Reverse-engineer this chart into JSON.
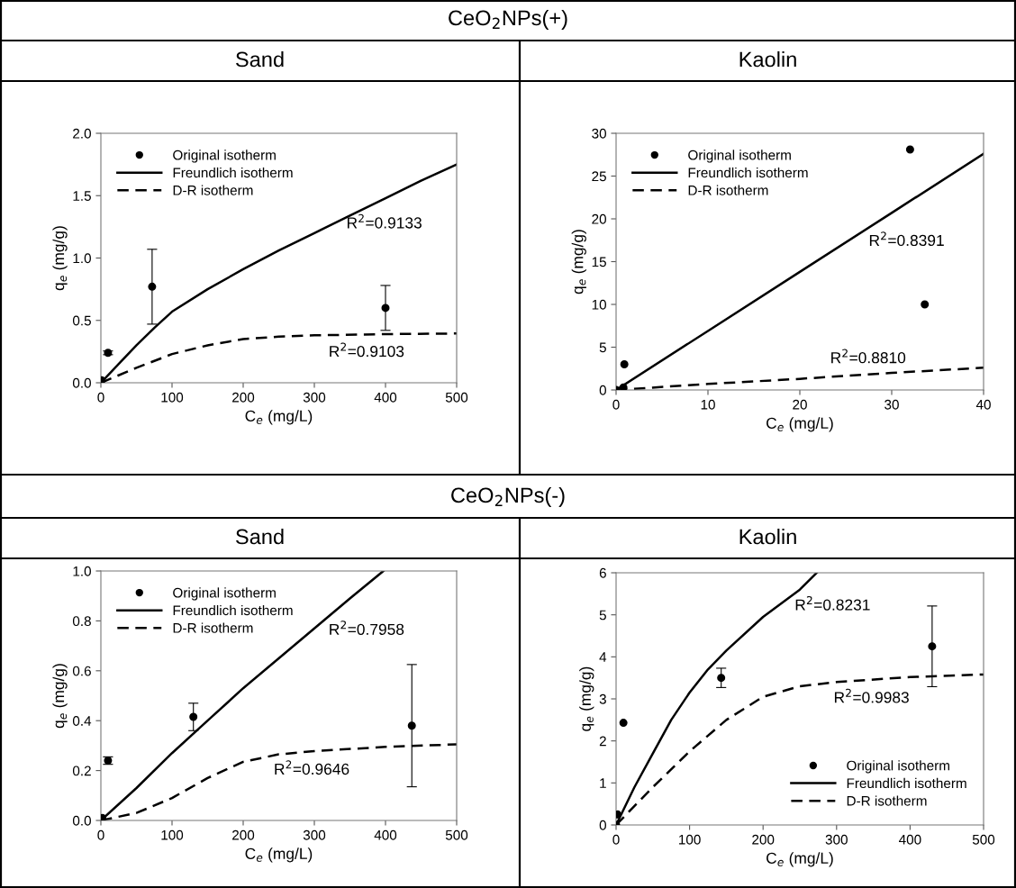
{
  "chart_data": [
    {
      "type": "scatter",
      "subtitle": "CeO$_{2}$NPs(+)",
      "title": "Sand",
      "xlabel": "C$_{e}$ (mg/L)",
      "ylabel": "q$_{e}$ (mg/g)",
      "xlim": [
        0,
        500
      ],
      "xticks": [
        0,
        100,
        200,
        300,
        400,
        500
      ],
      "ylim": [
        0,
        2.0
      ],
      "yticks": [
        {
          "value": 0,
          "label": "0.0"
        },
        0.5,
        {
          "value": 1,
          "label": "1.0"
        },
        1.5,
        {
          "value": 2,
          "label": "2.0"
        }
      ],
      "grid": false,
      "legend": "top left",
      "series": [
        {
          "name": "Original isotherm",
          "marker": "circle",
          "color": "#000000",
          "x": [
            1,
            10,
            72,
            400
          ],
          "values": [
            0.02,
            0.24,
            0.77,
            0.6
          ],
          "errors": [
            null,
            0.015,
            0.3,
            0.18
          ]
        },
        {
          "name": "Freundlich isotherm",
          "type": "line",
          "line_style": "solid",
          "color": "#000000",
          "x": [
            0,
            25,
            50,
            75,
            100,
            150,
            200,
            250,
            300,
            350,
            400,
            450,
            500
          ],
          "values": [
            0,
            0.15,
            0.3,
            0.44,
            0.57,
            0.75,
            0.91,
            1.06,
            1.2,
            1.34,
            1.48,
            1.62,
            1.75
          ]
        },
        {
          "name": "D-R isotherm",
          "type": "line",
          "line_style": "dashed",
          "color": "#000000",
          "x": [
            0,
            50,
            100,
            150,
            200,
            250,
            300,
            400,
            500
          ],
          "values": [
            0,
            0.12,
            0.23,
            0.3,
            0.35,
            0.37,
            0.38,
            0.39,
            0.395
          ]
        }
      ],
      "annotations": [
        "R$^{2}$=0.9133",
        "R$^{2}$=0.9103"
      ]
    },
    {
      "type": "scatter",
      "title": "Kaolin",
      "xlabel": "C$_{e}$ (mg/L)",
      "ylabel": "q$_{e}$ (mg/g)",
      "xlim": [
        0,
        40
      ],
      "xticks": [
        0,
        10,
        20,
        30,
        40
      ],
      "ylim": [
        0,
        30
      ],
      "yticks": [
        0,
        5,
        10,
        15,
        20,
        25,
        30
      ],
      "grid": false,
      "legend": "top left",
      "series": [
        {
          "name": "Original isotherm",
          "marker": "circle",
          "color": "#000000",
          "x": [
            0,
            0.8,
            0.9,
            32,
            33.6
          ],
          "values": [
            0,
            0.3,
            3.0,
            28.1,
            10
          ]
        },
        {
          "name": "Freundlich isotherm",
          "type": "line",
          "line_style": "solid",
          "color": "#000000",
          "x": [
            0,
            10,
            20,
            30,
            40
          ],
          "values": [
            0,
            6.9,
            13.8,
            20.7,
            27.6
          ]
        },
        {
          "name": "D-R isotherm",
          "type": "line",
          "line_style": "dashed",
          "color": "#000000",
          "x": [
            0,
            10,
            20,
            30,
            40
          ],
          "values": [
            0,
            0.7,
            1.3,
            2.0,
            2.6
          ]
        }
      ],
      "annotations": [
        "R$^{2}$=0.8391",
        "R$^{2}$=0.8810"
      ]
    },
    {
      "type": "scatter",
      "subtitle": "CeO$_{2}$NPs(-)",
      "title": "Sand",
      "xlabel": "C$_{e}$ (mg/L)",
      "ylabel": "q$_{e}$ (mg/g)",
      "xlim": [
        0,
        500
      ],
      "xticks": [
        0,
        100,
        200,
        300,
        400,
        500
      ],
      "ylim": [
        0,
        1.0
      ],
      "yticks": [
        {
          "value": 0,
          "label": "0.0"
        },
        0.2,
        0.4,
        0.6,
        0.8,
        {
          "value": 1,
          "label": "1.0"
        }
      ],
      "grid": false,
      "legend": "top left",
      "series": [
        {
          "name": "Original isotherm",
          "marker": "circle",
          "color": "#000000",
          "x": [
            2,
            10,
            130,
            437
          ],
          "values": [
            0.01,
            0.24,
            0.415,
            0.38
          ],
          "errors": [
            null,
            0.015,
            0.055,
            0.245
          ]
        },
        {
          "name": "Freundlich isotherm",
          "type": "line",
          "line_style": "solid",
          "color": "#000000",
          "x": [
            0,
            50,
            100,
            150,
            200,
            250,
            300,
            350,
            397
          ],
          "values": [
            0,
            0.13,
            0.27,
            0.4,
            0.53,
            0.65,
            0.77,
            0.89,
            1.0
          ]
        },
        {
          "name": "D-R isotherm",
          "type": "line",
          "line_style": "dashed",
          "color": "#000000",
          "x": [
            0,
            50,
            100,
            150,
            200,
            250,
            300,
            400,
            500
          ],
          "values": [
            0,
            0.03,
            0.09,
            0.17,
            0.235,
            0.265,
            0.278,
            0.295,
            0.305
          ]
        }
      ],
      "annotations": [
        "R$^{2}$=0.7958",
        "R$^{2}$=0.9646"
      ]
    },
    {
      "type": "scatter",
      "title": "Kaolin",
      "xlabel": "C$_{e}$ (mg/L)",
      "ylabel": "q$_{e}$ (mg/g)",
      "xlim": [
        0,
        500
      ],
      "xticks": [
        0,
        100,
        200,
        300,
        400,
        500
      ],
      "ylim": [
        0,
        6
      ],
      "yticks": [
        0,
        1,
        2,
        3,
        4,
        5,
        6
      ],
      "grid": false,
      "legend": "bottom right",
      "series": [
        {
          "name": "Original isotherm",
          "marker": "circle",
          "color": "#000000",
          "x": [
            0,
            2,
            10,
            143,
            430
          ],
          "values": [
            0,
            0.25,
            2.43,
            3.5,
            4.25
          ],
          "errors": [
            null,
            null,
            null,
            0.23,
            0.96
          ]
        },
        {
          "name": "Freundlich isotherm",
          "type": "line",
          "line_style": "solid",
          "color": "#000000",
          "x": [
            0,
            25,
            50,
            75,
            100,
            125,
            150,
            200,
            250,
            273
          ],
          "values": [
            0,
            0.9,
            1.7,
            2.5,
            3.15,
            3.7,
            4.15,
            4.95,
            5.6,
            6.0
          ]
        },
        {
          "name": "D-R isotherm",
          "type": "line",
          "line_style": "dashed",
          "color": "#000000",
          "x": [
            0,
            50,
            100,
            150,
            200,
            250,
            300,
            400,
            500
          ],
          "values": [
            0,
            0.9,
            1.75,
            2.5,
            3.05,
            3.3,
            3.4,
            3.52,
            3.58
          ]
        }
      ],
      "annotations": [
        "R$^{2}$=0.8231",
        "R$^{2}$=0.9983"
      ]
    }
  ]
}
